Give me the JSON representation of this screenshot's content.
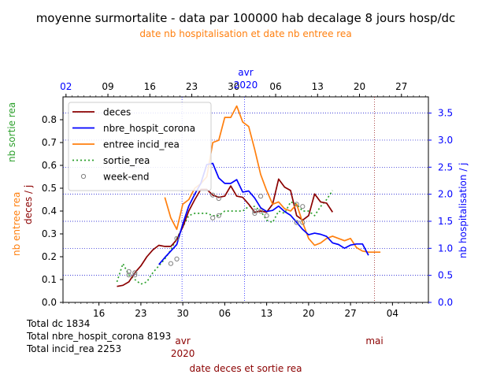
{
  "chart_data": {
    "type": "line",
    "title": "moyenne surmortalite - data par 100000 hab decalage 8 jours hosp/dc",
    "subtitle": "date nb hospitalisation et date nb entree rea",
    "xlabel_bottom": "date deces et sortie rea",
    "ylabel_left_1": "nb sortie rea",
    "ylabel_left_2": "nb entree rea",
    "ylabel_left_3": "deces / j",
    "ylabel_right": "nb hospitalisation / j",
    "bottom_ticks": [
      "16",
      "23",
      "30",
      "06",
      "13",
      "20",
      "27",
      "04"
    ],
    "bottom_month_labels": [
      {
        "text": "avr\n2020"
      },
      {
        "text": "mai"
      }
    ],
    "top_ticks": [
      "02",
      "09",
      "16",
      "23",
      "30",
      "06",
      "13",
      "20",
      "27"
    ],
    "top_month_label": "avr\n2020",
    "ylim_left": [
      0,
      0.9
    ],
    "yticks_left": [
      "0.0",
      "0.1",
      "0.2",
      "0.3",
      "0.4",
      "0.5",
      "0.6",
      "0.7",
      "0.8"
    ],
    "ylim_right": [
      0,
      3.8
    ],
    "yticks_right": [
      "0.0",
      "0.5",
      "1.0",
      "1.5",
      "2.0",
      "2.5",
      "3.0",
      "3.5"
    ],
    "legend": [
      "deces",
      "nbre_hospit_corona",
      "entree incid_rea",
      "sortie_rea",
      "week-end"
    ],
    "legend_position": "upper-left",
    "grid": true,
    "colors": {
      "deces": "#8b0000",
      "hospit": "#0000ff",
      "entree": "#ff7f0e",
      "sortie": "#2ca02c",
      "weekend": "#808080",
      "left_label_green": "#2ca02c",
      "left_label_orange": "#ff7f0e",
      "left_label_red": "#8b0000",
      "right_axis": "#0000ff",
      "top_axis": "#0000ff",
      "bottom_month": "#8b0000"
    },
    "series": [
      {
        "name": "deces",
        "axis": "left",
        "style": "solid",
        "x": [
          "2020-03-19",
          "2020-03-20",
          "2020-03-21",
          "2020-03-22",
          "2020-03-23",
          "2020-03-24",
          "2020-03-25",
          "2020-03-26",
          "2020-03-27",
          "2020-03-28",
          "2020-03-29",
          "2020-03-30",
          "2020-03-31",
          "2020-04-01",
          "2020-04-02",
          "2020-04-03",
          "2020-04-04",
          "2020-04-05",
          "2020-04-06",
          "2020-04-07",
          "2020-04-08",
          "2020-04-09",
          "2020-04-10",
          "2020-04-11",
          "2020-04-12",
          "2020-04-13",
          "2020-04-14",
          "2020-04-15",
          "2020-04-16",
          "2020-04-17",
          "2020-04-18",
          "2020-04-19",
          "2020-04-20",
          "2020-04-21",
          "2020-04-22",
          "2020-04-23",
          "2020-04-24"
        ],
        "y": [
          0.07,
          0.075,
          0.09,
          0.13,
          0.16,
          0.2,
          0.23,
          0.25,
          0.245,
          0.245,
          0.275,
          0.33,
          0.4,
          0.45,
          0.495,
          0.495,
          0.47,
          0.46,
          0.465,
          0.51,
          0.465,
          0.46,
          0.43,
          0.395,
          0.4,
          0.395,
          0.43,
          0.54,
          0.505,
          0.49,
          0.38,
          0.36,
          0.38,
          0.475,
          0.44,
          0.435,
          0.395
        ]
      },
      {
        "name": "nbre_hospit_corona",
        "axis": "right",
        "style": "solid",
        "x": [
          "2020-03-26",
          "2020-03-27",
          "2020-03-28",
          "2020-03-29",
          "2020-03-30",
          "2020-03-31",
          "2020-04-01",
          "2020-04-02",
          "2020-04-03",
          "2020-04-04",
          "2020-04-05",
          "2020-04-06",
          "2020-04-07",
          "2020-04-08",
          "2020-04-09",
          "2020-04-10",
          "2020-04-11",
          "2020-04-12",
          "2020-04-13",
          "2020-04-14",
          "2020-04-15",
          "2020-04-16",
          "2020-04-17",
          "2020-04-18",
          "2020-04-19",
          "2020-04-20",
          "2020-04-21",
          "2020-04-22",
          "2020-04-23",
          "2020-04-24",
          "2020-04-25",
          "2020-04-26",
          "2020-04-27",
          "2020-04-28",
          "2020-04-29",
          "2020-04-30"
        ],
        "y": [
          0.7,
          0.83,
          0.95,
          1.07,
          1.45,
          1.78,
          2.0,
          2.2,
          2.55,
          2.57,
          2.3,
          2.2,
          2.2,
          2.27,
          2.04,
          2.06,
          1.93,
          1.75,
          1.68,
          1.7,
          1.78,
          1.68,
          1.61,
          1.48,
          1.35,
          1.25,
          1.28,
          1.26,
          1.22,
          1.1,
          1.07,
          1.0,
          1.06,
          1.08,
          1.08,
          0.87
        ]
      },
      {
        "name": "entree incid_rea",
        "axis": "left",
        "style": "solid",
        "x": [
          "2020-03-27",
          "2020-03-28",
          "2020-03-29",
          "2020-03-30",
          "2020-03-31",
          "2020-04-01",
          "2020-04-02",
          "2020-04-03",
          "2020-04-04",
          "2020-04-05",
          "2020-04-06",
          "2020-04-07",
          "2020-04-08",
          "2020-04-09",
          "2020-04-10",
          "2020-04-11",
          "2020-04-12",
          "2020-04-13",
          "2020-04-14",
          "2020-04-15",
          "2020-04-16",
          "2020-04-17",
          "2020-04-18",
          "2020-04-19",
          "2020-04-20",
          "2020-04-21",
          "2020-04-22",
          "2020-04-23",
          "2020-04-24",
          "2020-04-25",
          "2020-04-26",
          "2020-04-27",
          "2020-04-28",
          "2020-04-29",
          "2020-04-30",
          "2020-05-01",
          "2020-05-02"
        ],
        "y": [
          0.46,
          0.37,
          0.32,
          0.43,
          0.45,
          0.5,
          0.52,
          0.55,
          0.7,
          0.71,
          0.81,
          0.81,
          0.86,
          0.79,
          0.77,
          0.67,
          0.56,
          0.49,
          0.43,
          0.44,
          0.41,
          0.4,
          0.43,
          0.35,
          0.28,
          0.25,
          0.26,
          0.28,
          0.29,
          0.28,
          0.27,
          0.28,
          0.24,
          0.225,
          0.22,
          0.22,
          0.22
        ]
      },
      {
        "name": "sortie_rea",
        "axis": "left",
        "style": "dotted",
        "x": [
          "2020-03-19",
          "2020-03-20",
          "2020-03-21",
          "2020-03-22",
          "2020-03-23",
          "2020-03-24",
          "2020-03-25",
          "2020-03-26",
          "2020-03-27",
          "2020-03-28",
          "2020-03-29",
          "2020-03-30",
          "2020-03-31",
          "2020-04-01",
          "2020-04-02",
          "2020-04-03",
          "2020-04-04",
          "2020-04-05",
          "2020-04-06",
          "2020-04-07",
          "2020-04-08",
          "2020-04-09",
          "2020-04-10",
          "2020-04-11",
          "2020-04-12",
          "2020-04-13",
          "2020-04-14",
          "2020-04-15",
          "2020-04-16",
          "2020-04-17",
          "2020-04-18",
          "2020-04-19",
          "2020-04-20",
          "2020-04-21",
          "2020-04-22",
          "2020-04-23",
          "2020-04-24"
        ],
        "y": [
          0.09,
          0.17,
          0.12,
          0.1,
          0.08,
          0.09,
          0.13,
          0.16,
          0.19,
          0.23,
          0.28,
          0.33,
          0.38,
          0.39,
          0.39,
          0.39,
          0.38,
          0.38,
          0.4,
          0.4,
          0.4,
          0.4,
          0.42,
          0.42,
          0.4,
          0.36,
          0.35,
          0.4,
          0.39,
          0.44,
          0.43,
          0.4,
          0.4,
          0.38,
          0.42,
          0.45,
          0.49
        ]
      },
      {
        "name": "week-end",
        "axis": "left",
        "style": "markers",
        "x": [
          "2020-03-21",
          "2020-03-22",
          "2020-03-28",
          "2020-03-29",
          "2020-04-04",
          "2020-04-05",
          "2020-04-11",
          "2020-04-12",
          "2020-04-18",
          "2020-04-19"
        ],
        "y": [
          0.12,
          0.13,
          0.17,
          0.19,
          0.37,
          0.38,
          0.39,
          0.4,
          0.43,
          0.42
        ]
      },
      {
        "name": "week-end-extra",
        "axis": "left",
        "style": "markers",
        "x": [
          "2020-03-21",
          "2020-03-22",
          "2020-03-29",
          "2020-04-04",
          "2020-04-05",
          "2020-04-11",
          "2020-04-12",
          "2020-04-13",
          "2020-04-18",
          "2020-04-19"
        ],
        "y": [
          0.135,
          0.12,
          0.28,
          0.47,
          0.455,
          0.4,
          0.465,
          0.38,
          0.35,
          0.35
        ]
      }
    ]
  },
  "totals": {
    "deces": "Total dc 1834",
    "hospit": "Total nbre_hospit_corona 8193",
    "rea": "Total incid_rea 2253"
  }
}
